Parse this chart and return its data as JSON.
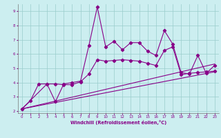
{
  "xlabel": "Windchill (Refroidissement éolien,°C)",
  "xlim": [
    -0.5,
    23.5
  ],
  "ylim": [
    1.85,
    9.5
  ],
  "xticks": [
    0,
    1,
    2,
    3,
    4,
    5,
    6,
    7,
    8,
    9,
    10,
    11,
    12,
    13,
    14,
    15,
    16,
    17,
    18,
    19,
    20,
    21,
    22,
    23
  ],
  "yticks": [
    2,
    3,
    4,
    5,
    6,
    7,
    8,
    9
  ],
  "background_color": "#cceef0",
  "line_color": "#880088",
  "grid_color": "#99cccc",
  "line1_x": [
    0,
    1,
    2,
    3,
    4,
    5,
    6,
    7,
    8,
    9,
    10,
    11,
    12,
    13,
    14,
    15,
    16,
    17,
    18,
    19,
    20,
    21,
    22,
    23
  ],
  "line1_y": [
    2.15,
    2.7,
    3.9,
    3.9,
    2.65,
    3.9,
    4.0,
    4.1,
    6.6,
    9.3,
    6.5,
    6.9,
    6.3,
    6.8,
    6.8,
    6.2,
    5.9,
    7.65,
    6.7,
    4.7,
    4.6,
    5.9,
    4.65,
    5.2
  ],
  "line2_x": [
    0,
    3,
    4,
    5,
    6,
    7,
    8,
    9,
    10,
    11,
    12,
    13,
    14,
    15,
    16,
    17,
    18,
    19,
    20,
    21,
    22,
    23
  ],
  "line2_y": [
    2.15,
    3.9,
    3.9,
    3.85,
    3.85,
    4.05,
    4.6,
    5.6,
    5.5,
    5.55,
    5.6,
    5.55,
    5.5,
    5.35,
    5.2,
    6.25,
    6.5,
    4.55,
    4.65,
    4.7,
    4.75,
    4.8
  ],
  "line3_x": [
    0,
    23
  ],
  "line3_y": [
    2.15,
    4.75
  ],
  "line4_x": [
    0,
    23
  ],
  "line4_y": [
    2.15,
    5.3
  ]
}
